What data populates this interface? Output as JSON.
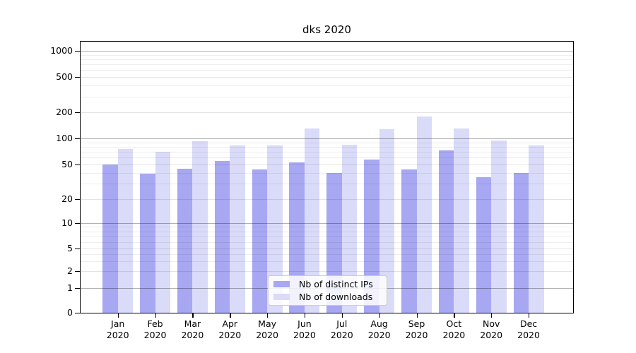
{
  "title": "dks 2020",
  "chart_data": {
    "type": "bar",
    "title": "dks 2020",
    "categories": [
      "Jan 2020",
      "Feb 2020",
      "Mar 2020",
      "Apr 2020",
      "May 2020",
      "Jun 2020",
      "Jul 2020",
      "Aug 2020",
      "Sep 2020",
      "Oct 2020",
      "Nov 2020",
      "Dec 2020"
    ],
    "x_tick_line1": [
      "Jan",
      "Feb",
      "Mar",
      "Apr",
      "May",
      "Jun",
      "Jul",
      "Aug",
      "Sep",
      "Oct",
      "Nov",
      "Dec"
    ],
    "x_tick_line2": "2020",
    "series": [
      {
        "name": "Nb of distinct IPs",
        "color": "#a7a7f2",
        "values": [
          50,
          39,
          45,
          55,
          44,
          53,
          40,
          57,
          44,
          73,
          36,
          40
        ]
      },
      {
        "name": "Nb of downloads",
        "color": "#dadaf9",
        "values": [
          75,
          70,
          93,
          83,
          83,
          130,
          85,
          128,
          180,
          130,
          95,
          83
        ]
      }
    ],
    "yticks": [
      0,
      1,
      2,
      5,
      10,
      20,
      50,
      100,
      200,
      500,
      1000
    ],
    "yscale": "symlog-like: linear 0-1, logarithmic 1-1000",
    "ylim": [
      0,
      1275
    ],
    "xlabel": "",
    "ylabel": "",
    "grid": true,
    "legend_position": "lower center inside plot"
  },
  "legend": {
    "items": [
      {
        "label": "Nb of distinct IPs",
        "color": "#a7a7f2"
      },
      {
        "label": "Nb of downloads",
        "color": "#dadaf9"
      }
    ]
  },
  "colors": {
    "background": "#ffffff",
    "bar_distinct_ips": "#a7a7f2",
    "bar_downloads": "#dadaf9",
    "grid_major_hex_on_white": "#b3b3b3",
    "grid_minor_hex_on_white": "#ededed",
    "axis_and_text": "#000000",
    "legend_border": "#cccccc"
  }
}
